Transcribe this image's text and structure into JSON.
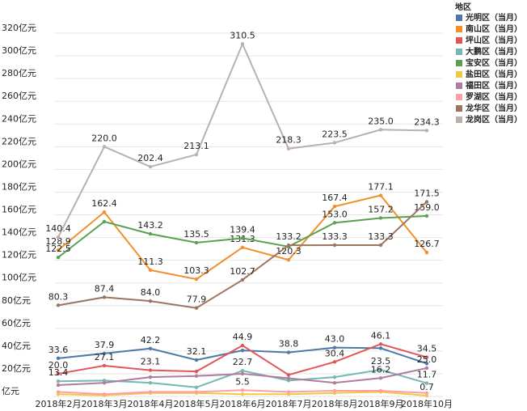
{
  "chart_data": {
    "type": "line",
    "categories": [
      "2018年2月",
      "2018年3月",
      "2018年4月",
      "2018年5月",
      "2018年6月",
      "2018年7月",
      "2018年8月",
      "2018年9月",
      "2018年10月"
    ],
    "ylim": [
      0,
      340
    ],
    "yticks": [
      {
        "value": 0,
        "label": "亿元"
      },
      {
        "value": 20,
        "label": "20亿元"
      },
      {
        "value": 40,
        "label": "40亿元"
      },
      {
        "value": 60,
        "label": "60亿元"
      },
      {
        "value": 80,
        "label": "80亿元"
      },
      {
        "value": 100,
        "label": "100亿元"
      },
      {
        "value": 120,
        "label": "120亿元"
      },
      {
        "value": 140,
        "label": "140亿元"
      },
      {
        "value": 160,
        "label": "160亿元"
      },
      {
        "value": 180,
        "label": "180亿元"
      },
      {
        "value": 200,
        "label": "200亿元"
      },
      {
        "value": 220,
        "label": "220亿元"
      },
      {
        "value": 240,
        "label": "240亿元"
      },
      {
        "value": 260,
        "label": "260亿元"
      },
      {
        "value": 280,
        "label": "280亿元"
      },
      {
        "value": 300,
        "label": "300亿元"
      },
      {
        "value": 320,
        "label": "320亿元"
      }
    ],
    "grid": true,
    "legend_title": "地区",
    "legend": "right",
    "series": [
      {
        "name": "光明区（当月）",
        "color": "#4e79a7",
        "values": [
          33.6,
          37.9,
          42.2,
          32.1,
          40.5,
          38.8,
          43.0,
          42.5,
          29
        ],
        "value_labels": [
          "33.6",
          "37.9",
          "42.2",
          "32.1",
          null,
          "38.8",
          "43.0",
          null,
          null
        ]
      },
      {
        "name": "南山区（当月）",
        "color": "#f28e2b",
        "values": [
          128.9,
          162.4,
          111.3,
          103.3,
          131.3,
          120.3,
          167.4,
          177.1,
          126.7
        ],
        "value_labels": [
          "128.9",
          "162.4",
          "111.3",
          "103.3",
          "131.3",
          "120.3",
          "167.4",
          "177.1",
          "126.7"
        ]
      },
      {
        "name": "坪山区（当月）",
        "color": "#e15759",
        "values": [
          20.0,
          27.1,
          23.1,
          22,
          44.9,
          19,
          30.4,
          46.1,
          34.5
        ],
        "value_labels": [
          "20.0",
          "27.1",
          "23.1",
          null,
          "44.9",
          null,
          "30.4",
          "46.1",
          "34.5"
        ]
      },
      {
        "name": "大鹏区（当月）",
        "color": "#76b7b2",
        "values": [
          13.4,
          14,
          12,
          8,
          22.7,
          14,
          17,
          23.5,
          11.7
        ],
        "value_labels": [
          "13.4",
          null,
          null,
          null,
          "22.7",
          null,
          null,
          "23.5",
          "11.7"
        ]
      },
      {
        "name": "宝安区（当月）",
        "color": "#59a14f",
        "values": [
          122.5,
          154,
          143.2,
          135.5,
          139.4,
          132,
          153.0,
          157.2,
          159.0
        ],
        "value_labels": [
          "122.5",
          null,
          "143.2",
          "135.5",
          "139.4",
          null,
          "153.0",
          "157.2",
          "159.0"
        ]
      },
      {
        "name": "盐田区（当月）",
        "color": "#edc948",
        "values": [
          2,
          1,
          3,
          3,
          2,
          2,
          3,
          4,
          0.7
        ],
        "value_labels": [
          null,
          null,
          null,
          null,
          null,
          null,
          null,
          null,
          "0.7"
        ]
      },
      {
        "name": "福田区（当月）",
        "color": "#b07aa1",
        "values": [
          10,
          12,
          17,
          18,
          20,
          16,
          12,
          16.2,
          25.0
        ],
        "value_labels": [
          null,
          null,
          null,
          null,
          null,
          null,
          null,
          "16.2",
          "25.0"
        ]
      },
      {
        "name": "罗湖区（当月）",
        "color": "#ff9da7",
        "values": [
          4,
          2,
          4,
          4,
          5.5,
          4,
          5,
          5,
          3
        ],
        "value_labels": [
          null,
          null,
          null,
          null,
          "5.5",
          null,
          null,
          null,
          null
        ]
      },
      {
        "name": "龙华区（当月）",
        "color": "#9c755f",
        "values": [
          80.3,
          87.4,
          84.0,
          77.9,
          102.7,
          133.2,
          133.3,
          133.3,
          171.5
        ],
        "value_labels": [
          "80.3",
          "87.4",
          "84.0",
          "77.9",
          "102.7",
          "133.2",
          "133.3",
          "133.3",
          "171.5"
        ]
      },
      {
        "name": "龙岗区（当月）",
        "color": "#bab0ac",
        "values": [
          140.4,
          220.0,
          202.4,
          213.1,
          310.5,
          218.3,
          223.5,
          235.0,
          234.3
        ],
        "value_labels": [
          "140.4",
          "220.0",
          "202.4",
          "213.1",
          "310.5",
          "218.3",
          "223.5",
          "235.0",
          "234.3"
        ]
      }
    ]
  }
}
